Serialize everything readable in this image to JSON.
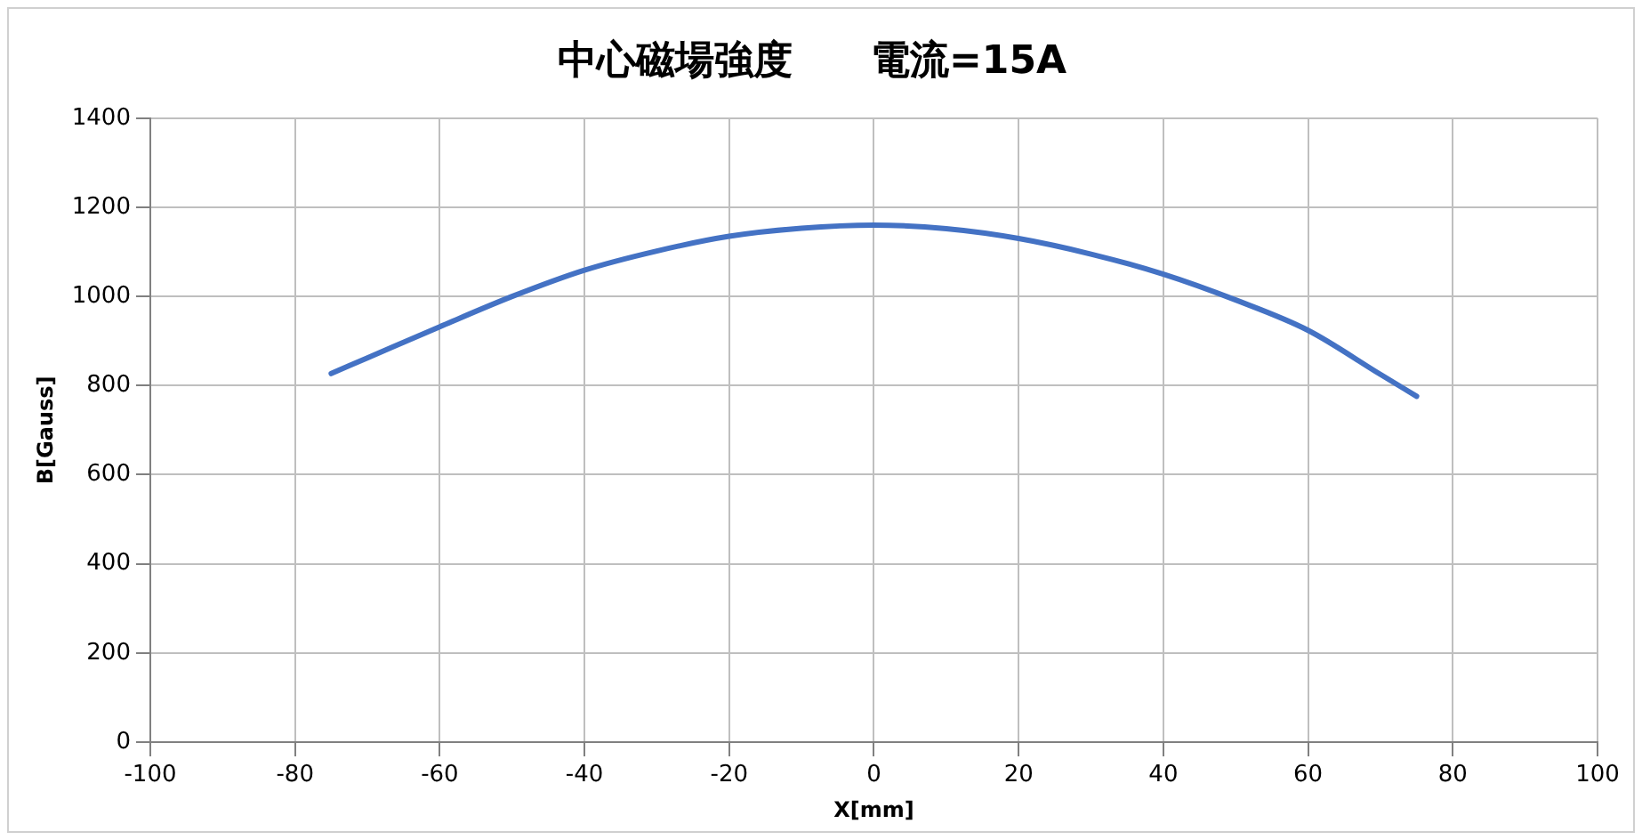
{
  "chart_data": {
    "type": "line",
    "title": "中心磁場強度　　電流=15A",
    "xlabel": "X[mm]",
    "ylabel": "B[Gauss]",
    "x": [
      -75,
      -70,
      -60,
      -50,
      -40,
      -30,
      -20,
      -10,
      0,
      10,
      20,
      30,
      40,
      50,
      60,
      70,
      75
    ],
    "series": [
      {
        "color": "#4472c4",
        "values": [
          827,
          862,
          932,
          1000,
          1059,
          1102,
          1135,
          1153,
          1160,
          1152,
          1130,
          1095,
          1050,
          992,
          924,
          825,
          776
        ]
      }
    ],
    "xlim": [
      -100,
      100
    ],
    "xticks": [
      -100,
      -80,
      -60,
      -40,
      -20,
      0,
      20,
      40,
      60,
      80,
      100
    ],
    "ylim": [
      0,
      1400
    ],
    "yticks": [
      0,
      200,
      400,
      600,
      800,
      1000,
      1200,
      1400
    ],
    "grid": true,
    "legend": false,
    "marker": "none",
    "line_style": "solid"
  }
}
